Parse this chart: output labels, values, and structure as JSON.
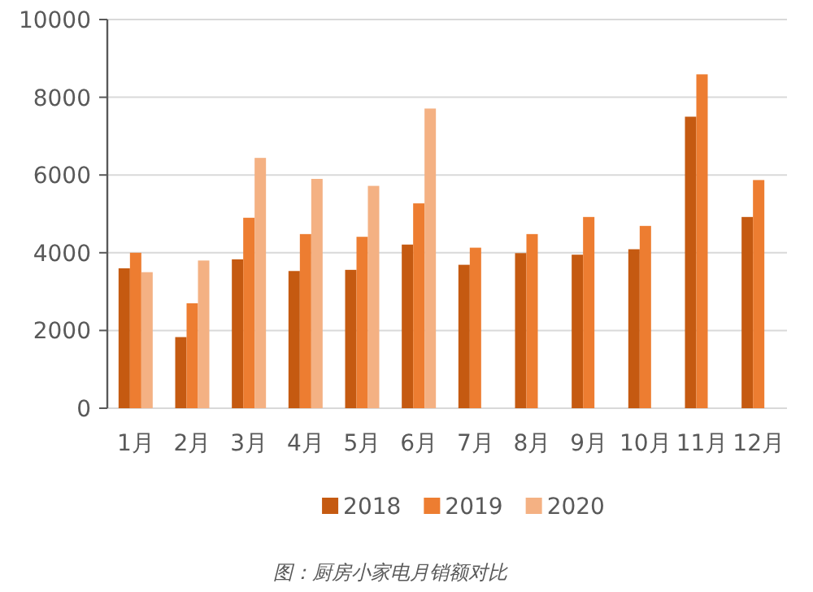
{
  "chart_data": {
    "type": "bar",
    "categories": [
      "1月",
      "2月",
      "3月",
      "4月",
      "5月",
      "6月",
      "7月",
      "8月",
      "9月",
      "10月",
      "11月",
      "12月"
    ],
    "series": [
      {
        "name": "2018",
        "color": "#c55a11",
        "values": [
          3600,
          1830,
          3830,
          3530,
          3560,
          4210,
          3690,
          3990,
          3950,
          4090,
          7500,
          4920
        ]
      },
      {
        "name": "2019",
        "color": "#ed7d31",
        "values": [
          4000,
          2700,
          4900,
          4480,
          4410,
          5270,
          4130,
          4480,
          4920,
          4690,
          8590,
          5870
        ]
      },
      {
        "name": "2020",
        "color": "#f4b183",
        "values": [
          3500,
          3800,
          6440,
          5900,
          5720,
          7710,
          null,
          null,
          null,
          null,
          null,
          null
        ]
      }
    ],
    "ylim": [
      0,
      10000
    ],
    "yticks": [
      0,
      2000,
      4000,
      6000,
      8000,
      10000
    ],
    "grid": "y",
    "legend": "bottom",
    "annotations": [
      "图：厨房小家电月销额对比"
    ]
  }
}
